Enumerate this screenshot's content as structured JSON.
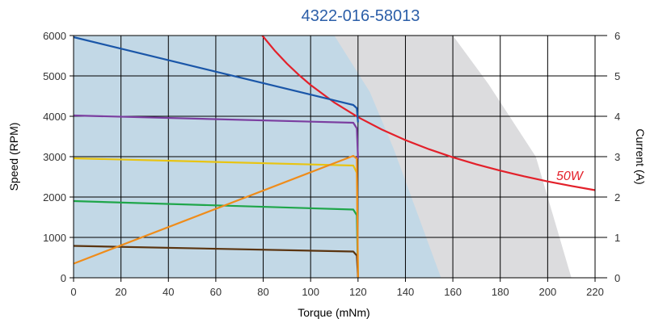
{
  "chart_data": {
    "type": "line",
    "title": "4322-016-58013",
    "xlabel": "Torque (mNm)",
    "ylabel": "Speed (RPM)",
    "y2label": "Current (A)",
    "xlim": [
      0,
      220
    ],
    "ylim": [
      0,
      6000
    ],
    "y2lim": [
      0,
      6
    ],
    "xticks": [
      "0",
      "20",
      "40",
      "60",
      "80",
      "100",
      "120",
      "140",
      "160",
      "180",
      "200",
      "220"
    ],
    "yticks": [
      "0",
      "1000",
      "2000",
      "3000",
      "4000",
      "5000",
      "6000"
    ],
    "y2ticks": [
      "0",
      "1",
      "2",
      "3",
      "4",
      "5",
      "6"
    ],
    "grid": true,
    "colors": {
      "title": "#2b5ea8",
      "continuous_region": "#c2d8e6",
      "intermittent_region": "#dcdcde",
      "power_curve": "#e3202a"
    },
    "regions": [
      {
        "role": "intermittent",
        "points": [
          [
            0,
            6000
          ],
          [
            110,
            6000
          ],
          [
            160,
            6000
          ],
          [
            175,
            4800
          ],
          [
            195,
            3000
          ],
          [
            210,
            0
          ],
          [
            155,
            0
          ],
          [
            0,
            0
          ]
        ]
      },
      {
        "role": "continuous",
        "points": [
          [
            0,
            6000
          ],
          [
            110,
            6000
          ],
          [
            125,
            4600
          ],
          [
            135,
            3200
          ],
          [
            145,
            1600
          ],
          [
            155,
            0
          ],
          [
            0,
            0
          ]
        ]
      }
    ],
    "power_curve": {
      "label": "50W",
      "color": "#e3202a",
      "x": [
        79.6,
        85,
        90,
        95,
        100,
        110,
        120,
        130,
        140,
        150,
        160,
        170,
        180,
        190,
        200,
        210,
        220
      ],
      "y": [
        6000,
        5617,
        5305,
        5026,
        4775,
        4341,
        3979,
        3673,
        3410,
        3183,
        2984,
        2809,
        2653,
        2513,
        2387,
        2274,
        2170
      ]
    },
    "series": [
      {
        "color": "#1a56a8",
        "axis": "speed",
        "x": [
          0,
          118,
          119.5,
          120
        ],
        "y": [
          5960,
          4280,
          4200,
          3850
        ]
      },
      {
        "color": "#7b3ea0",
        "axis": "speed",
        "x": [
          0,
          118,
          119.5,
          120
        ],
        "y": [
          4020,
          3840,
          3700,
          2950
        ]
      },
      {
        "color": "#e8c412",
        "axis": "speed",
        "x": [
          0,
          118,
          119.5,
          120
        ],
        "y": [
          2960,
          2780,
          2600,
          0
        ]
      },
      {
        "color": "#1fa64a",
        "axis": "speed",
        "x": [
          0,
          118,
          119.5,
          120
        ],
        "y": [
          1900,
          1690,
          1550,
          0
        ]
      },
      {
        "color": "#5a3410",
        "axis": "speed",
        "x": [
          0,
          118,
          119.5,
          120
        ],
        "y": [
          790,
          650,
          550,
          0
        ]
      },
      {
        "color": "#ef8c1a",
        "axis": "current",
        "x": [
          0,
          118,
          119.5,
          120
        ],
        "y": [
          0.35,
          3.02,
          2.95,
          0
        ]
      }
    ]
  }
}
